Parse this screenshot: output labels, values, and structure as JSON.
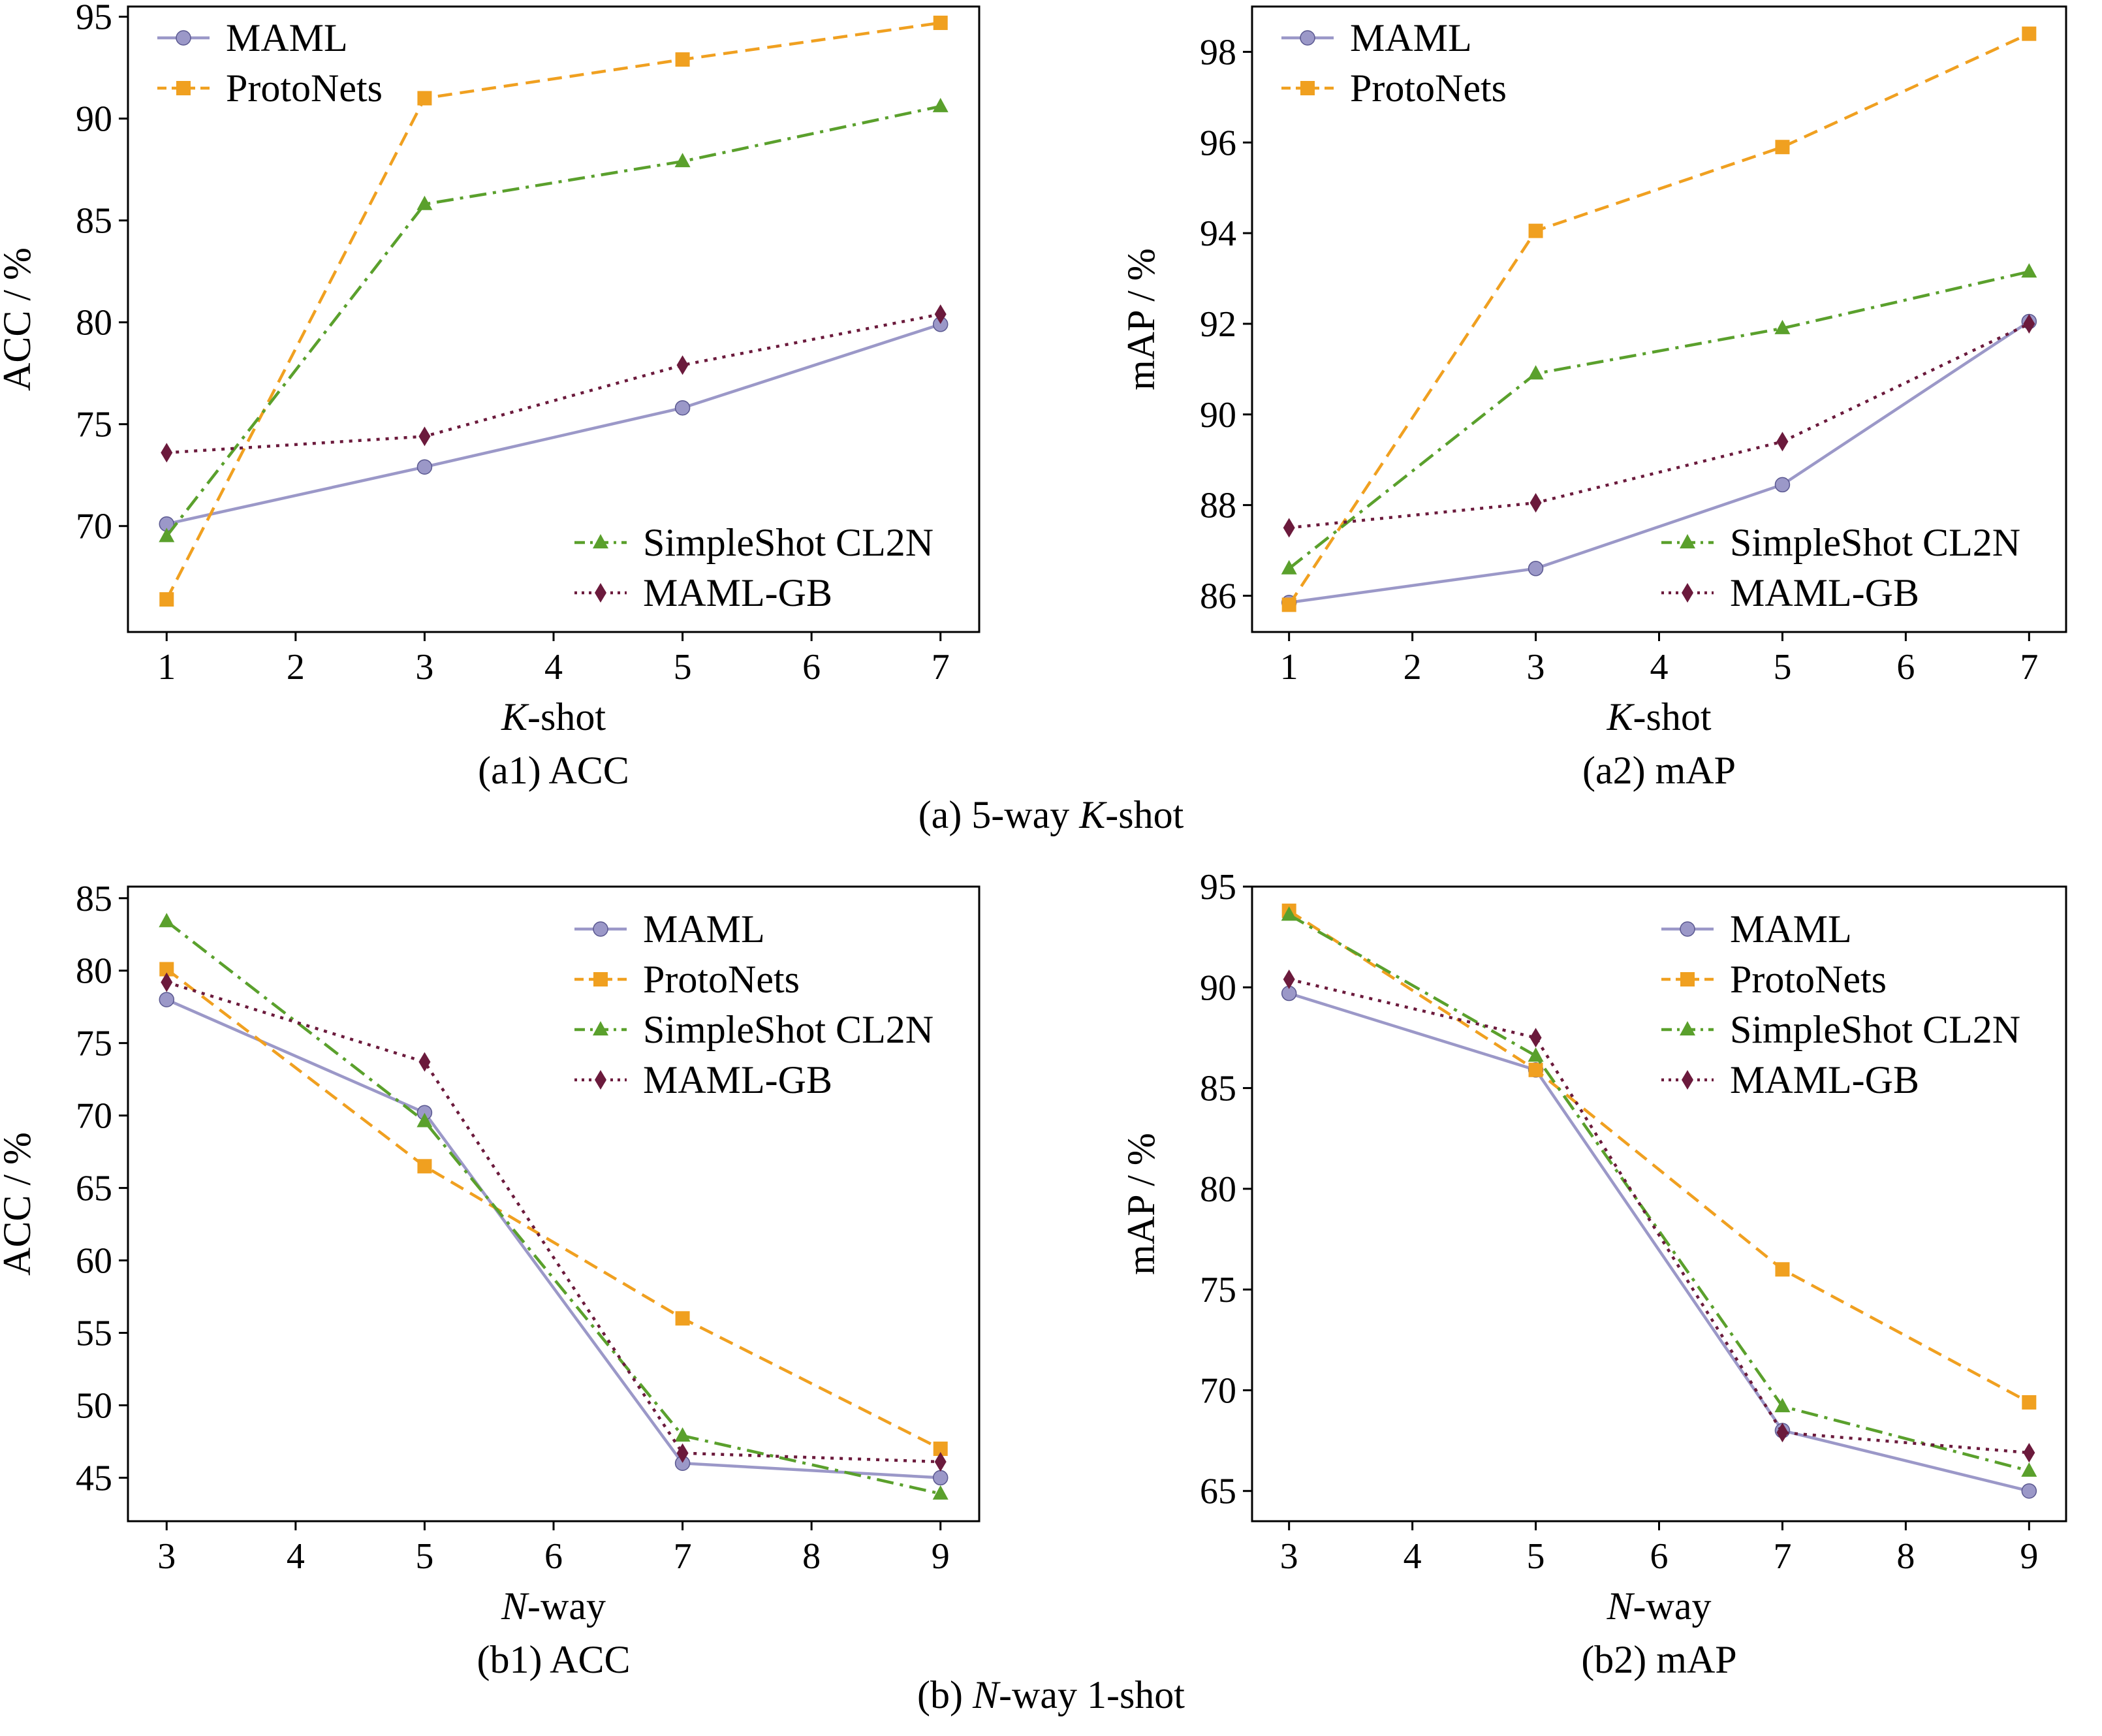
{
  "figure": {
    "group_captions": [
      {
        "prefix": "(a) 5-way ",
        "italic": "K",
        "suffix": "-shot"
      },
      {
        "prefix": "(b) ",
        "italic": "N",
        "suffix": "-way 1-shot"
      }
    ]
  },
  "colors": {
    "MAML": "#9b98c8",
    "ProtoNets": "#f0a020",
    "SimpleShot CL2N": "#5aa02c",
    "MAML-GB": "#6b1a3c"
  },
  "chart_data": [
    {
      "id": "a1",
      "type": "line",
      "caption": "(a1) ACC",
      "xlabel": {
        "italic": "K",
        "rest": "-shot"
      },
      "ylabel": "ACC / %",
      "x": [
        1,
        3,
        5,
        7
      ],
      "xlim": [
        0.7,
        7.3
      ],
      "ylim": [
        64.8,
        95.5
      ],
      "xticks": [
        1,
        2,
        3,
        4,
        5,
        6,
        7
      ],
      "yticks": [
        70,
        75,
        80,
        85,
        90,
        95
      ],
      "legend_groups": [
        {
          "placement": "top-left",
          "series": [
            "MAML",
            "ProtoNets"
          ]
        },
        {
          "placement": "bottom-right",
          "series": [
            "SimpleShot CL2N",
            "MAML-GB"
          ]
        }
      ],
      "series": [
        {
          "name": "MAML",
          "values": [
            70.1,
            72.9,
            75.8,
            79.9
          ]
        },
        {
          "name": "ProtoNets",
          "values": [
            66.4,
            91.0,
            92.9,
            94.7
          ]
        },
        {
          "name": "SimpleShot CL2N",
          "values": [
            69.5,
            85.8,
            87.9,
            90.6
          ]
        },
        {
          "name": "MAML-GB",
          "values": [
            73.6,
            74.4,
            77.9,
            80.4
          ]
        }
      ]
    },
    {
      "id": "a2",
      "type": "line",
      "caption": "(a2) mAP",
      "xlabel": {
        "italic": "K",
        "rest": "-shot"
      },
      "ylabel": "mAP / %",
      "x": [
        1,
        3,
        5,
        7
      ],
      "xlim": [
        0.7,
        7.3
      ],
      "ylim": [
        85.2,
        99.0
      ],
      "xticks": [
        1,
        2,
        3,
        4,
        5,
        6,
        7
      ],
      "yticks": [
        86,
        88,
        90,
        92,
        94,
        96,
        98
      ],
      "legend_groups": [
        {
          "placement": "top-left",
          "series": [
            "MAML",
            "ProtoNets"
          ]
        },
        {
          "placement": "bottom-right",
          "series": [
            "SimpleShot CL2N",
            "MAML-GB"
          ]
        }
      ],
      "series": [
        {
          "name": "MAML",
          "values": [
            85.85,
            86.6,
            88.45,
            92.05
          ]
        },
        {
          "name": "ProtoNets",
          "values": [
            85.8,
            94.05,
            95.9,
            98.4
          ]
        },
        {
          "name": "SimpleShot CL2N",
          "values": [
            86.6,
            90.9,
            91.9,
            93.15
          ]
        },
        {
          "name": "MAML-GB",
          "values": [
            87.5,
            88.05,
            89.4,
            92.0
          ]
        }
      ]
    },
    {
      "id": "b1",
      "type": "line",
      "caption": "(b1) ACC",
      "xlabel": {
        "italic": "N",
        "rest": "-way"
      },
      "ylabel": "ACC / %",
      "x": [
        3,
        5,
        7,
        9
      ],
      "xlim": [
        2.7,
        9.3
      ],
      "ylim": [
        42.0,
        85.8
      ],
      "xticks": [
        3,
        4,
        5,
        6,
        7,
        8,
        9
      ],
      "yticks": [
        45,
        50,
        55,
        60,
        65,
        70,
        75,
        80,
        85
      ],
      "legend_groups": [
        {
          "placement": "top-right",
          "series": [
            "MAML",
            "ProtoNets",
            "SimpleShot CL2N",
            "MAML-GB"
          ]
        }
      ],
      "series": [
        {
          "name": "MAML",
          "values": [
            78.0,
            70.2,
            46.0,
            45.0
          ]
        },
        {
          "name": "ProtoNets",
          "values": [
            80.1,
            66.5,
            56.0,
            47.0
          ]
        },
        {
          "name": "SimpleShot CL2N",
          "values": [
            83.4,
            69.6,
            47.9,
            43.9
          ]
        },
        {
          "name": "MAML-GB",
          "values": [
            79.2,
            73.7,
            46.7,
            46.1
          ]
        }
      ]
    },
    {
      "id": "b2",
      "type": "line",
      "caption": "(b2) mAP",
      "xlabel": {
        "italic": "N",
        "rest": "-way"
      },
      "ylabel": "mAP / %",
      "x": [
        3,
        5,
        7,
        9
      ],
      "xlim": [
        2.7,
        9.3
      ],
      "ylim": [
        63.5,
        95.0
      ],
      "xticks": [
        3,
        4,
        5,
        6,
        7,
        8,
        9
      ],
      "yticks": [
        65,
        70,
        75,
        80,
        85,
        90,
        95
      ],
      "legend_groups": [
        {
          "placement": "top-right",
          "series": [
            "MAML",
            "ProtoNets",
            "SimpleShot CL2N",
            "MAML-GB"
          ]
        }
      ],
      "series": [
        {
          "name": "MAML",
          "values": [
            89.7,
            85.9,
            68.0,
            65.0
          ]
        },
        {
          "name": "ProtoNets",
          "values": [
            93.8,
            85.9,
            76.0,
            69.4
          ]
        },
        {
          "name": "SimpleShot CL2N",
          "values": [
            93.6,
            86.6,
            69.2,
            66.0
          ]
        },
        {
          "name": "MAML-GB",
          "values": [
            90.4,
            87.5,
            67.9,
            66.9
          ]
        }
      ]
    }
  ]
}
